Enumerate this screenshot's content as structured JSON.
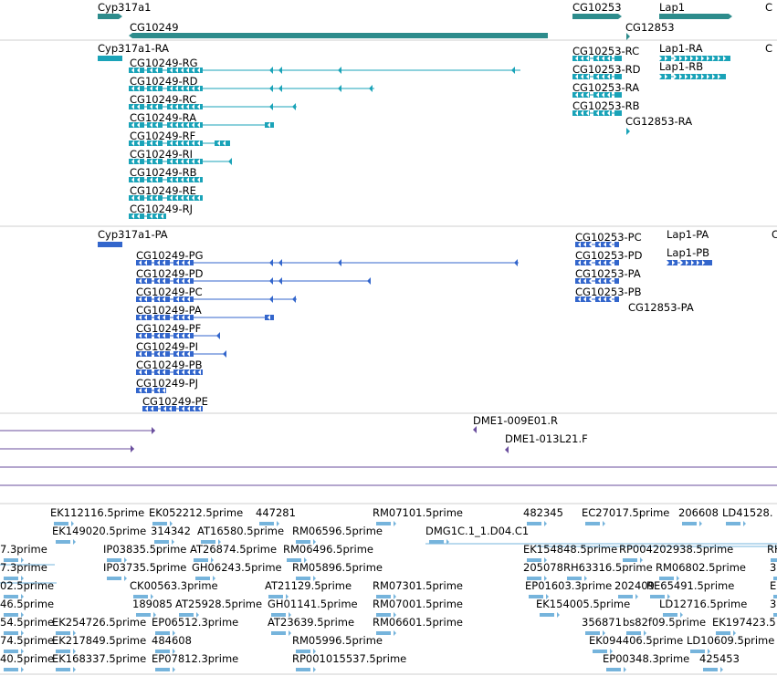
{
  "colors": {
    "gene": "#2d8c8c",
    "transcript": "#1aa3b8",
    "protein": "#3366cc",
    "probe": "#6a4e9e",
    "est": "#76b4dc",
    "divider": "#cfcfcf"
  },
  "icons": {
    "gene_strand": "arrow-glyph-icon",
    "feature_block": "exon-block-icon"
  },
  "tracks": {
    "genes": {
      "labels": {
        "cyp317a1": "Cyp317a1",
        "cg10249": "CG10249",
        "cg10253": "CG10253",
        "lap1": "Lap1",
        "cg12853": "CG12853",
        "truncated": "C"
      }
    },
    "transcripts": {
      "labels": {
        "cyp317a1_ra": "Cyp317a1-RA",
        "cg10249_rg": "CG10249-RG",
        "cg10249_rd": "CG10249-RD",
        "cg10249_rc": "CG10249-RC",
        "cg10249_ra": "CG10249-RA",
        "cg10249_rf": "CG10249-RF",
        "cg10249_ri": "CG10249-RI",
        "cg10249_rb": "CG10249-RB",
        "cg10249_re": "CG10249-RE",
        "cg10249_rj": "CG10249-RJ",
        "cg10253_rc": "CG10253-RC",
        "cg10253_rd": "CG10253-RD",
        "cg10253_ra": "CG10253-RA",
        "cg10253_rb": "CG10253-RB",
        "cg12853_ra": "CG12853-RA",
        "lap1_ra": "Lap1-RA",
        "lap1_rb": "Lap1-RB",
        "truncated": "C"
      }
    },
    "proteins": {
      "labels": {
        "cyp317a1_pa": "Cyp317a1-PA",
        "cg10249_pg": "CG10249-PG",
        "cg10249_pd": "CG10249-PD",
        "cg10249_pc": "CG10249-PC",
        "cg10249_pa": "CG10249-PA",
        "cg10249_pf": "CG10249-PF",
        "cg10249_pi": "CG10249-PI",
        "cg10249_pb": "CG10249-PB",
        "cg10249_pj": "CG10249-PJ",
        "cg10249_pe": "CG10249-PE",
        "cg10253_pc": "CG10253-PC",
        "cg10253_pd": "CG10253-PD",
        "cg10253_pa": "CG10253-PA",
        "cg10253_pb": "CG10253-PB",
        "cg12853_pa": "CG12853-PA",
        "lap1_pa": "Lap1-PA",
        "lap1_pb": "Lap1-PB",
        "truncated": "C"
      }
    },
    "probes": {
      "labels": {
        "dme1_009e01": "DME1-009E01.R",
        "dme1_013l21": "DME1-013L21.F"
      }
    },
    "ests": {
      "labels": {
        "ek112116": "EK112116.5prime",
        "ek052212": "EK052212.5prime",
        "n447281": "447281",
        "rm07101": "RM07101.5prime",
        "n482345": "482345",
        "ec27017": "EC27017.5prime",
        "n206608": "206608",
        "ld41528": "LD41528.",
        "ek149020": "EK149020.5prime",
        "n314342": "314342",
        "at16580": "AT16580.5prime",
        "rm06596": "RM06596.5prime",
        "dmg1c": "DMG1C.1_1.D04.C1",
        "r3_a": "7.3prime",
        "ip03835": "IP03835.5prime",
        "at26874": "AT26874.5prime",
        "rm06496": "RM06496.5prime",
        "ek154848": "EK154848.5prime",
        "rp004202938": "RP004202938.5prime",
        "trunc_rh": "RH",
        "r4_a": "7.3prime",
        "ip03735": "IP03735.5prime",
        "gh06243": "GH06243.5prime",
        "rm05896": "RM05896.5prime",
        "n205078": "205078",
        "rh63316": "RH63316.5prime",
        "rm06802": "RM06802.5prime",
        "trunc_3a": "3",
        "r5_a": "02.5prime",
        "ck00563": "CK00563.3prime",
        "at21129": "AT21129.5prime",
        "rm07301": "RM07301.5prime",
        "ep01603": "EP01603.3prime",
        "n202409": "202409",
        "re65491": "RE65491.5prime",
        "trunc_e": "E",
        "r6_a": "46.5prime",
        "n189085": "189085",
        "at25928": "AT25928.5prime",
        "gh01141": "GH01141.5prime",
        "rm07001": "RM07001.5prime",
        "ek154005": "EK154005.5prime",
        "ld12716": "LD12716.5prime",
        "trunc_3b": "3",
        "r7_a": "54.5prime",
        "ek254726": "EK254726.5prime",
        "ep06512": "EP06512.3prime",
        "at23639": "AT23639.5prime",
        "rm06601": "RM06601.5prime",
        "n356871": "356871",
        "bs82f09": "bs82f09.5prime",
        "ek197423": "EK197423.5",
        "r8_a": "74.5prime",
        "ek217849": "EK217849.5prime",
        "n484608": "484608",
        "rm05996": "RM05996.5prime",
        "ek094406": "EK094406.5prime",
        "ld10609": "LD10609.5prime",
        "r9_a": "40.5prime",
        "ek168337": "EK168337.5prime",
        "ep07812": "EP07812.3prime",
        "rp001015537": "RP001015537.5prime",
        "ep00348": "EP00348.3prime",
        "n425453": "425453"
      }
    }
  }
}
